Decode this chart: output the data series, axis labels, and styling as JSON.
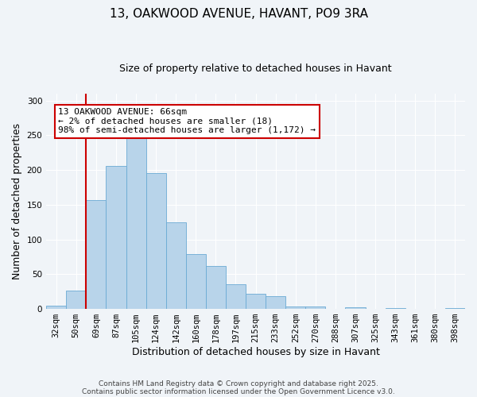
{
  "title": "13, OAKWOOD AVENUE, HAVANT, PO9 3RA",
  "subtitle": "Size of property relative to detached houses in Havant",
  "xlabel": "Distribution of detached houses by size in Havant",
  "ylabel": "Number of detached properties",
  "bar_labels": [
    "32sqm",
    "50sqm",
    "69sqm",
    "87sqm",
    "105sqm",
    "124sqm",
    "142sqm",
    "160sqm",
    "178sqm",
    "197sqm",
    "215sqm",
    "233sqm",
    "252sqm",
    "270sqm",
    "288sqm",
    "307sqm",
    "325sqm",
    "343sqm",
    "361sqm",
    "380sqm",
    "398sqm"
  ],
  "bar_values": [
    5,
    26,
    157,
    206,
    250,
    195,
    125,
    79,
    62,
    35,
    22,
    18,
    4,
    4,
    0,
    2,
    0,
    1,
    0,
    0,
    1
  ],
  "bar_color": "#b8d4ea",
  "bar_edge_color": "#6aaad4",
  "vline_color": "#cc0000",
  "annotation_text": "13 OAKWOOD AVENUE: 66sqm\n← 2% of detached houses are smaller (18)\n98% of semi-detached houses are larger (1,172) →",
  "annotation_box_color": "#ffffff",
  "annotation_box_edge_color": "#cc0000",
  "ylim": [
    0,
    310
  ],
  "background_color": "#f0f4f8",
  "grid_color": "#ffffff",
  "footnote1": "Contains HM Land Registry data © Crown copyright and database right 2025.",
  "footnote2": "Contains public sector information licensed under the Open Government Licence v3.0.",
  "title_fontsize": 11,
  "subtitle_fontsize": 9,
  "axis_label_fontsize": 9,
  "tick_fontsize": 7.5,
  "annotation_fontsize": 8,
  "footnote_fontsize": 6.5
}
